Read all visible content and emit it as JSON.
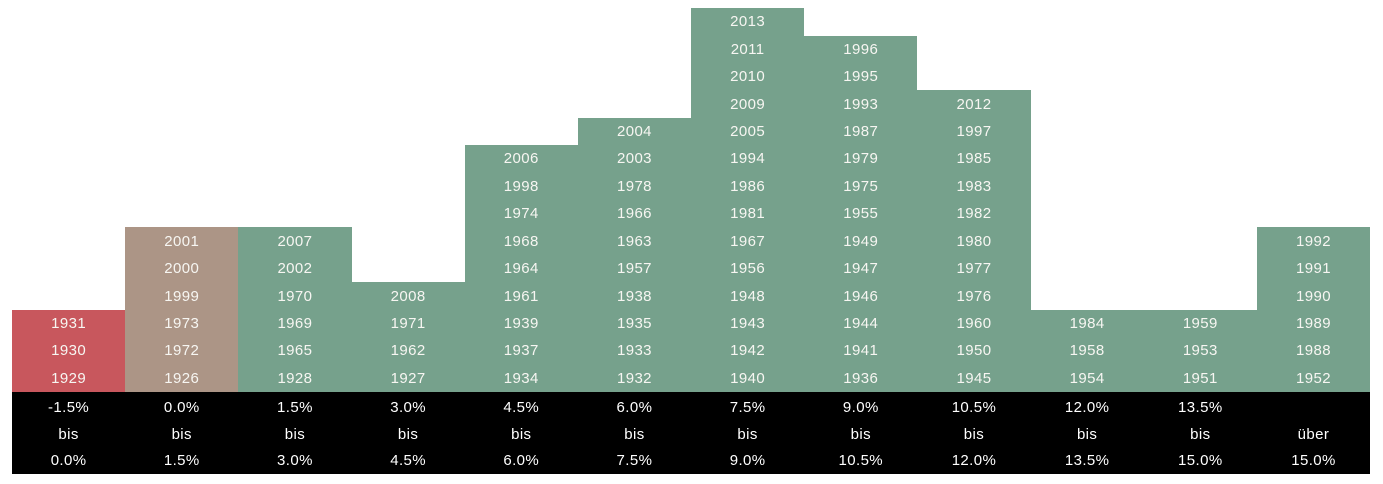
{
  "chart_data": {
    "type": "bar",
    "subtype": "stacked-year-histogram",
    "title": "",
    "xlabel": "",
    "ylabel": "",
    "legend": "none",
    "grid": false,
    "axis_band_color": "#000000",
    "axis_text_color": "#ffffff",
    "cell_text_color": "#f7f6f2",
    "colors": {
      "negative_bin": "#c8575d",
      "near_zero_bin": "#ac9586",
      "positive_bin": "#76a18c"
    },
    "bins": [
      {
        "range": [
          "-1.5%",
          "bis",
          "0.0%"
        ],
        "count": 3,
        "color": "#c8575d",
        "years_top_to_bottom": [
          "1931",
          "1930",
          "1929"
        ]
      },
      {
        "range": [
          "0.0%",
          "bis",
          "1.5%"
        ],
        "count": 6,
        "color": "#ac9586",
        "years_top_to_bottom": [
          "2001",
          "2000",
          "1999",
          "1973",
          "1972",
          "1926"
        ]
      },
      {
        "range": [
          "1.5%",
          "bis",
          "3.0%"
        ],
        "count": 6,
        "color": "#76a18c",
        "years_top_to_bottom": [
          "2007",
          "2002",
          "1970",
          "1969",
          "1965",
          "1928"
        ]
      },
      {
        "range": [
          "3.0%",
          "bis",
          "4.5%"
        ],
        "count": 4,
        "color": "#76a18c",
        "years_top_to_bottom": [
          "2008",
          "1971",
          "1962",
          "1927"
        ]
      },
      {
        "range": [
          "4.5%",
          "bis",
          "6.0%"
        ],
        "count": 9,
        "color": "#76a18c",
        "years_top_to_bottom": [
          "2006",
          "1998",
          "1974",
          "1968",
          "1964",
          "1961",
          "1939",
          "1937",
          "1934"
        ]
      },
      {
        "range": [
          "6.0%",
          "bis",
          "7.5%"
        ],
        "count": 10,
        "color": "#76a18c",
        "years_top_to_bottom": [
          "2004",
          "2003",
          "1978",
          "1966",
          "1963",
          "1957",
          "1938",
          "1935",
          "1933",
          "1932"
        ]
      },
      {
        "range": [
          "7.5%",
          "bis",
          "9.0%"
        ],
        "count": 14,
        "color": "#76a18c",
        "years_top_to_bottom": [
          "2013",
          "2011",
          "2010",
          "2009",
          "2005",
          "1994",
          "1986",
          "1981",
          "1967",
          "1956",
          "1948",
          "1943",
          "1942",
          "1940"
        ]
      },
      {
        "range": [
          "9.0%",
          "bis",
          "10.5%"
        ],
        "count": 13,
        "color": "#76a18c",
        "years_top_to_bottom": [
          "1996",
          "1995",
          "1993",
          "1987",
          "1979",
          "1975",
          "1955",
          "1949",
          "1947",
          "1946",
          "1944",
          "1941",
          "1936"
        ]
      },
      {
        "range": [
          "10.5%",
          "bis",
          "12.0%"
        ],
        "count": 11,
        "color": "#76a18c",
        "years_top_to_bottom": [
          "2012",
          "1997",
          "1985",
          "1983",
          "1982",
          "1980",
          "1977",
          "1976",
          "1960",
          "1950",
          "1945"
        ]
      },
      {
        "range": [
          "12.0%",
          "bis",
          "13.5%"
        ],
        "count": 3,
        "color": "#76a18c",
        "years_top_to_bottom": [
          "1984",
          "1958",
          "1954"
        ]
      },
      {
        "range": [
          "13.5%",
          "bis",
          "15.0%"
        ],
        "count": 3,
        "color": "#76a18c",
        "years_top_to_bottom": [
          "1959",
          "1953",
          "1951"
        ]
      },
      {
        "range": [
          "",
          "über",
          "15.0%"
        ],
        "count": 6,
        "color": "#76a18c",
        "years_top_to_bottom": [
          "1992",
          "1991",
          "1990",
          "1989",
          "1988",
          "1952"
        ]
      }
    ]
  }
}
